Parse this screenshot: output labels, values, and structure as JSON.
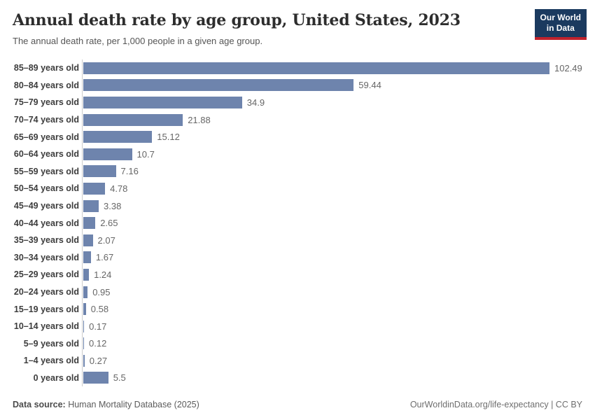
{
  "header": {
    "title": "Annual death rate by age group, United States, 2023",
    "subtitle": "The annual death rate, per 1,000 people in a given age group.",
    "logo": {
      "line1": "Our World",
      "line2": "in Data"
    }
  },
  "chart_data": {
    "type": "bar",
    "orientation": "horizontal",
    "title": "Annual death rate by age group, United States, 2023",
    "xlabel": "",
    "ylabel": "",
    "xlim": [
      0,
      102.49
    ],
    "grid": false,
    "legend": false,
    "bar_color": "#6e84ad",
    "categories": [
      "85–89 years old",
      "80–84 years old",
      "75–79 years old",
      "70–74 years old",
      "65–69 years old",
      "60–64 years old",
      "55–59 years old",
      "50–54 years old",
      "45–49 years old",
      "40–44 years old",
      "35–39 years old",
      "30–34 years old",
      "25–29 years old",
      "20–24 years old",
      "15–19 years old",
      "10–14 years old",
      "5–9 years old",
      "1–4 years old",
      "0 years old"
    ],
    "values": [
      102.49,
      59.44,
      34.9,
      21.88,
      15.12,
      10.7,
      7.16,
      4.78,
      3.38,
      2.65,
      2.07,
      1.67,
      1.24,
      0.95,
      0.58,
      0.17,
      0.12,
      0.27,
      5.5
    ],
    "value_labels": [
      "102.49",
      "59.44",
      "34.9",
      "21.88",
      "15.12",
      "10.7",
      "7.16",
      "4.78",
      "3.38",
      "2.65",
      "2.07",
      "1.67",
      "1.24",
      "0.95",
      "0.58",
      "0.17",
      "0.12",
      "0.27",
      "5.5"
    ]
  },
  "footer": {
    "datasource_label": "Data source:",
    "datasource_value": " Human Mortality Database (2025)",
    "link": "OurWorldinData.org/life-expectancy | CC BY"
  },
  "colors": {
    "bar": "#6e84ad",
    "logo_navy": "#1b3a5f",
    "logo_red": "#c0222c",
    "axis_line": "#cccccc"
  }
}
